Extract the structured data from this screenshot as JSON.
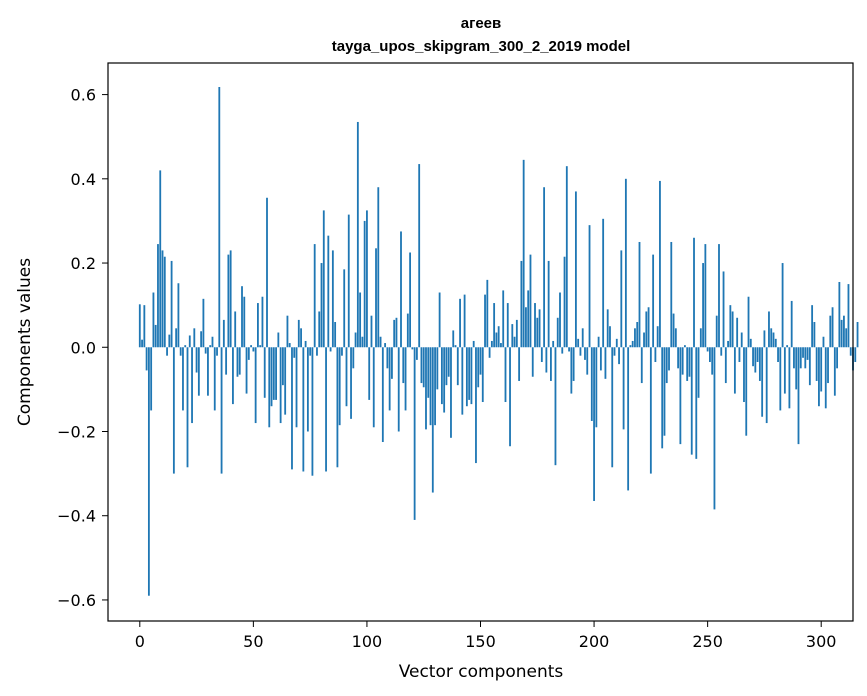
{
  "chart_data": {
    "type": "bar",
    "title_line1": "агеев",
    "title_line2": "tayga_upos_skipgram_300_2_2019 model",
    "xlabel": "Vector components",
    "ylabel": "Components values",
    "xlim": [
      -14,
      314
    ],
    "ylim": [
      -0.65,
      0.675
    ],
    "xticks": [
      0,
      50,
      100,
      150,
      200,
      250,
      300
    ],
    "xtick_labels": [
      "0",
      "50",
      "100",
      "150",
      "200",
      "250",
      "300"
    ],
    "yticks": [
      -0.6,
      -0.4,
      -0.2,
      0.0,
      0.2,
      0.4,
      0.6
    ],
    "ytick_labels": [
      "−0.6",
      "−0.4",
      "−0.2",
      "0.0",
      "0.2",
      "0.4",
      "0.6"
    ],
    "grid": false,
    "bar_color": "#1f77b4",
    "values": [
      0.102,
      0.018,
      0.1,
      -0.055,
      -0.59,
      -0.15,
      0.13,
      0.053,
      0.245,
      0.42,
      0.23,
      0.215,
      -0.02,
      0.03,
      0.205,
      -0.3,
      0.045,
      0.152,
      -0.02,
      -0.15,
      0.005,
      -0.285,
      0.028,
      -0.18,
      0.045,
      -0.06,
      -0.115,
      0.038,
      0.115,
      -0.015,
      -0.115,
      0.005,
      0.025,
      -0.15,
      -0.02,
      0.618,
      -0.3,
      0.065,
      -0.065,
      0.22,
      0.23,
      -0.135,
      0.085,
      -0.07,
      -0.065,
      0.145,
      0.12,
      -0.11,
      -0.03,
      0.005,
      -0.01,
      -0.18,
      0.105,
      0.005,
      0.12,
      -0.12,
      0.355,
      -0.19,
      -0.14,
      -0.125,
      -0.125,
      0.035,
      -0.18,
      -0.09,
      -0.16,
      0.075,
      0.01,
      -0.29,
      -0.025,
      -0.19,
      0.065,
      0.045,
      -0.295,
      0.015,
      -0.2,
      -0.02,
      -0.305,
      0.245,
      -0.02,
      0.085,
      0.2,
      0.325,
      -0.295,
      0.265,
      -0.01,
      0.23,
      0.06,
      -0.285,
      -0.185,
      -0.02,
      0.185,
      -0.14,
      0.315,
      -0.17,
      -0.05,
      0.035,
      0.535,
      0.13,
      0.025,
      0.3,
      0.325,
      -0.125,
      0.075,
      -0.19,
      0.235,
      0.38,
      0.025,
      -0.225,
      0.01,
      -0.05,
      -0.15,
      -0.075,
      0.065,
      0.07,
      -0.2,
      0.275,
      -0.085,
      -0.15,
      0.08,
      0.225,
      -0.005,
      -0.41,
      -0.03,
      0.435,
      -0.085,
      -0.095,
      -0.195,
      -0.12,
      -0.185,
      -0.345,
      -0.185,
      -0.1,
      0.13,
      -0.135,
      -0.155,
      -0.09,
      -0.07,
      -0.215,
      0.04,
      0.005,
      -0.09,
      0.115,
      -0.16,
      0.125,
      -0.14,
      -0.125,
      -0.135,
      0.015,
      -0.275,
      -0.095,
      -0.065,
      -0.13,
      0.125,
      0.16,
      -0.025,
      0.015,
      0.105,
      0.035,
      0.05,
      0.01,
      0.135,
      -0.13,
      0.105,
      -0.235,
      0.055,
      0.025,
      0.065,
      -0.08,
      0.205,
      0.445,
      0.095,
      0.135,
      0.22,
      -0.07,
      0.105,
      0.07,
      0.09,
      -0.035,
      0.38,
      -0.06,
      0.205,
      -0.08,
      0.015,
      -0.28,
      0.07,
      0.13,
      -0.015,
      0.215,
      0.43,
      -0.01,
      -0.11,
      -0.08,
      0.37,
      0.02,
      -0.02,
      0.045,
      -0.03,
      -0.065,
      0.29,
      -0.175,
      -0.365,
      -0.19,
      0.025,
      -0.055,
      0.305,
      -0.075,
      0.09,
      0.05,
      -0.285,
      -0.02,
      0.02,
      -0.04,
      0.23,
      -0.195,
      0.4,
      -0.34,
      0.005,
      0.015,
      0.045,
      0.06,
      0.25,
      -0.085,
      0.035,
      0.085,
      0.095,
      -0.3,
      0.22,
      -0.035,
      0.05,
      0.395,
      -0.24,
      -0.21,
      -0.085,
      -0.055,
      0.25,
      0.08,
      0.045,
      -0.05,
      -0.23,
      -0.065,
      0.005,
      -0.08,
      -0.07,
      -0.255,
      0.26,
      -0.265,
      -0.12,
      0.045,
      0.2,
      0.245,
      -0.01,
      -0.035,
      -0.065,
      -0.385,
      0.075,
      0.245,
      -0.02,
      0.18,
      -0.085,
      0.015,
      0.1,
      0.085,
      -0.11,
      0.07,
      -0.035,
      0.035,
      -0.13,
      -0.21,
      0.12,
      0.02,
      -0.045,
      -0.06,
      -0.035,
      -0.08,
      -0.165,
      0.04,
      -0.18,
      0.085,
      0.045,
      0.035,
      0.02,
      -0.035,
      -0.15,
      0.2,
      -0.11,
      0.005,
      -0.145,
      0.11,
      -0.05,
      -0.1,
      -0.23,
      -0.05,
      -0.025,
      -0.05,
      -0.03,
      -0.09,
      0.1,
      0.06,
      -0.08,
      -0.14,
      -0.105,
      0.025,
      -0.145,
      -0.085,
      0.075,
      0.095,
      -0.115,
      -0.05,
      0.155,
      0.065,
      0.075,
      0.045,
      0.15,
      -0.02,
      -0.055,
      -0.035,
      0.06
    ]
  }
}
